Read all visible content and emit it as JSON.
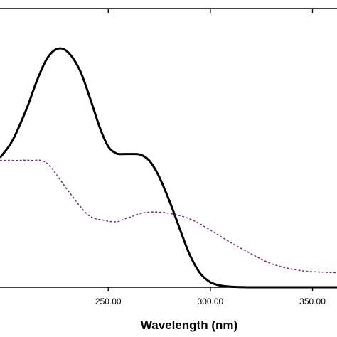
{
  "chart_data": {
    "type": "line",
    "title": "",
    "xlabel": "Wavelength (nm)",
    "ylabel": "",
    "xlim": [
      197,
      362
    ],
    "ylim": [
      0,
      1.0
    ],
    "x_ticks": [
      250,
      300,
      350
    ],
    "x_tick_labels": [
      "250.00",
      "300.00",
      "350.00"
    ],
    "grid": false,
    "legend": "none",
    "series": [
      {
        "style": "solid",
        "color": "#000000",
        "x": [
          197,
          203,
          210,
          215,
          220,
          225,
          230,
          236,
          241,
          246,
          250,
          254,
          258,
          262,
          266,
          270,
          274,
          278,
          282,
          286,
          290,
          295,
          300,
          305,
          310,
          320,
          330,
          340,
          362
        ],
        "y": [
          0.465,
          0.525,
          0.64,
          0.74,
          0.82,
          0.855,
          0.845,
          0.78,
          0.68,
          0.57,
          0.505,
          0.48,
          0.478,
          0.478,
          0.475,
          0.455,
          0.41,
          0.345,
          0.27,
          0.19,
          0.115,
          0.05,
          0.018,
          0.006,
          0.002,
          0.0,
          0.0,
          0.0,
          0.0
        ]
      },
      {
        "style": "dashed",
        "color": "#7a2b7a",
        "x": [
          197,
          205,
          212,
          220,
          230,
          240,
          248,
          254,
          258,
          262,
          266,
          272,
          280,
          290,
          300,
          310,
          320,
          328,
          334,
          340,
          346,
          352,
          362
        ],
        "y": [
          0.455,
          0.455,
          0.455,
          0.445,
          0.35,
          0.26,
          0.24,
          0.235,
          0.245,
          0.255,
          0.265,
          0.27,
          0.265,
          0.245,
          0.205,
          0.16,
          0.12,
          0.09,
          0.075,
          0.065,
          0.058,
          0.055,
          0.052
        ]
      }
    ]
  }
}
